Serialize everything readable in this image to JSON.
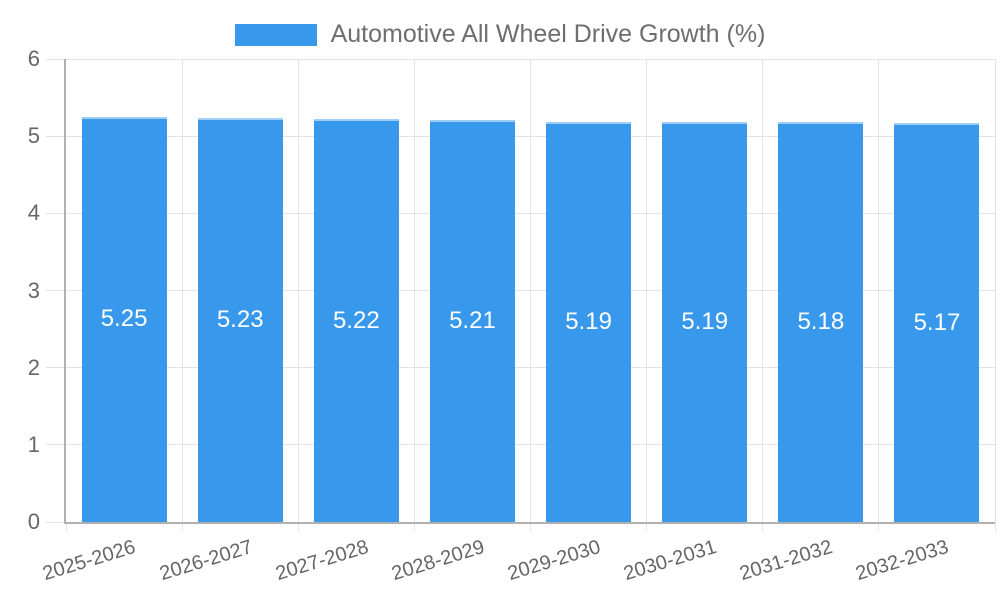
{
  "chart_data": {
    "type": "bar",
    "title": "Automotive All Wheel Drive Growth (%)",
    "legend_position": "top",
    "categories": [
      "2025-2026",
      "2026-2027",
      "2027-2028",
      "2028-2029",
      "2029-2030",
      "2030-2031",
      "2031-2032",
      "2032-2033"
    ],
    "values": [
      5.25,
      5.23,
      5.22,
      5.21,
      5.19,
      5.19,
      5.18,
      5.17
    ],
    "value_labels": [
      "5.25",
      "5.23",
      "5.22",
      "5.21",
      "5.19",
      "5.19",
      "5.18",
      "5.17"
    ],
    "xlabel": "",
    "ylabel": "",
    "ylim": [
      0,
      6
    ],
    "yticks": [
      0,
      1,
      2,
      3,
      4,
      5,
      6
    ],
    "grid": true,
    "colors": {
      "bar_fill": "#3899ec",
      "bar_border": "#9fcdf6",
      "value_label": "#ffffff",
      "axis_text": "#666666",
      "grid_line": "#e3e3e3",
      "axis_line": "#b0b0b0",
      "background": "#ffffff"
    }
  }
}
